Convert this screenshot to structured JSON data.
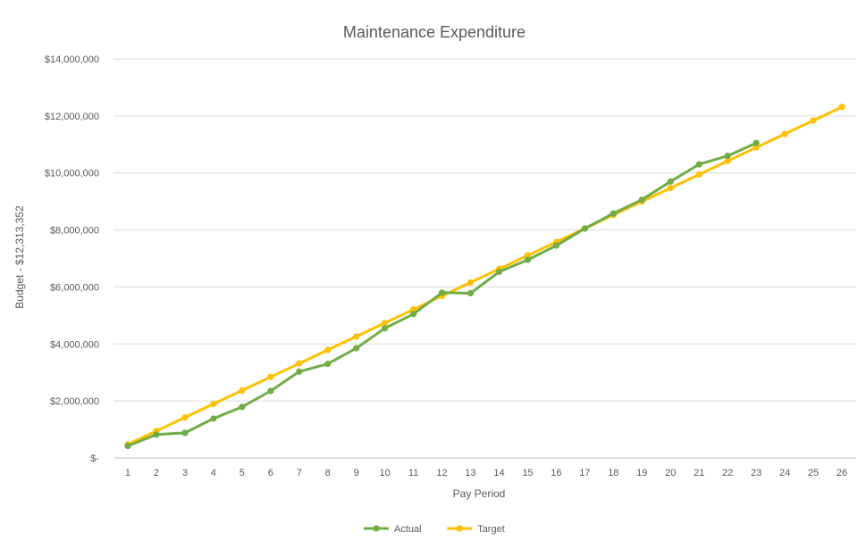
{
  "chart_data": {
    "type": "line",
    "title": "Maintenance Expenditure",
    "xlabel": "Pay Period",
    "ylabel": "Budget - $12,313,352",
    "categories": [
      "1",
      "2",
      "3",
      "4",
      "5",
      "6",
      "7",
      "8",
      "9",
      "10",
      "11",
      "12",
      "13",
      "14",
      "15",
      "16",
      "17",
      "18",
      "19",
      "20",
      "21",
      "22",
      "23",
      "24",
      "25",
      "26"
    ],
    "ylim": [
      0,
      14000000
    ],
    "y_ticks": [
      {
        "value": 0,
        "label": "$-"
      },
      {
        "value": 2000000,
        "label": "$2,000,000"
      },
      {
        "value": 4000000,
        "label": "$4,000,000"
      },
      {
        "value": 6000000,
        "label": "$6,000,000"
      },
      {
        "value": 8000000,
        "label": "$8,000,000"
      },
      {
        "value": 10000000,
        "label": "$10,000,000"
      },
      {
        "value": 12000000,
        "label": "$12,000,000"
      },
      {
        "value": 14000000,
        "label": "$14,000,000"
      }
    ],
    "grid": true,
    "legend_position": "bottom",
    "series": [
      {
        "name": "Actual",
        "color": "#70ad47",
        "values": [
          420000,
          820000,
          880000,
          1380000,
          1790000,
          2350000,
          3030000,
          3300000,
          3850000,
          4550000,
          5050000,
          5800000,
          5780000,
          6530000,
          6950000,
          7450000,
          8050000,
          8580000,
          9060000,
          9700000,
          10300000,
          10600000,
          11050000,
          null,
          null,
          null
        ]
      },
      {
        "name": "Target",
        "color": "#ffc000",
        "values": [
          473590,
          947181,
          1420771,
          1894362,
          2367952,
          2841543,
          3315133,
          3788724,
          4262314,
          4735905,
          5209495,
          5683085,
          6156676,
          6630266,
          7103857,
          7577447,
          8051038,
          8524628,
          8998219,
          9471809,
          9945400,
          10418990,
          10892580,
          11366171,
          11839761,
          12313352
        ]
      }
    ]
  }
}
